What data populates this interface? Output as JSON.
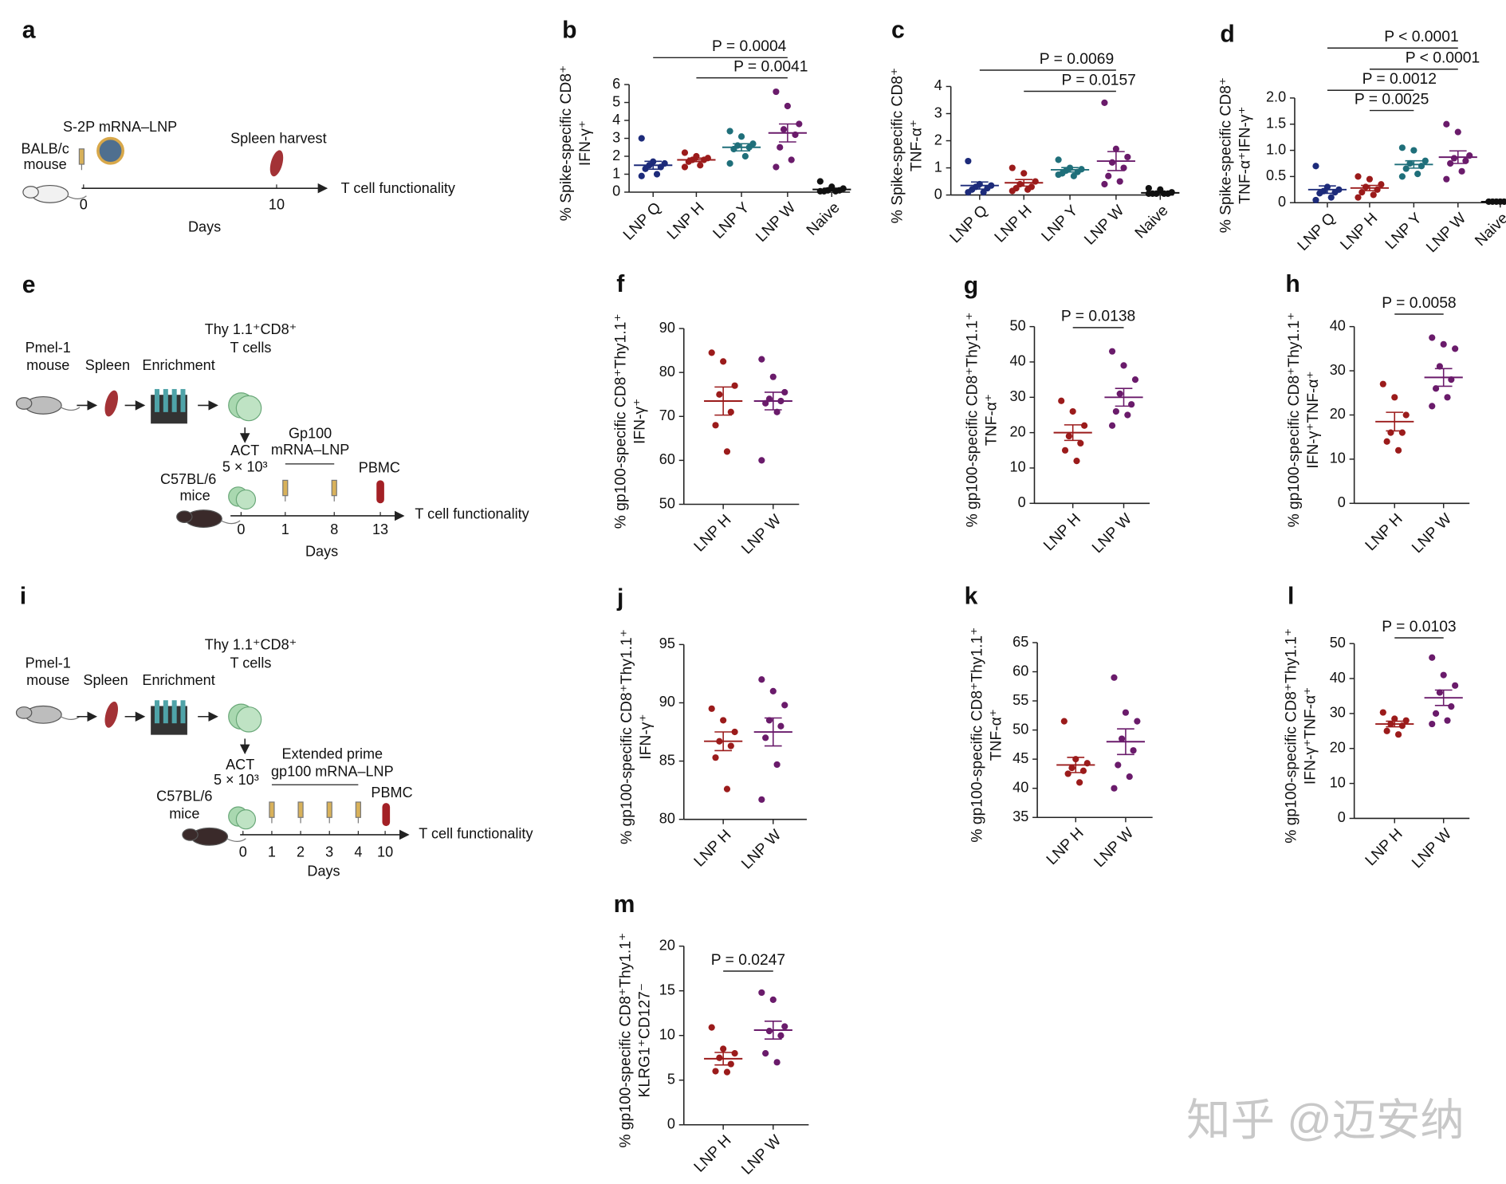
{
  "chart_data": [
    {
      "type": "dot",
      "panel": "b",
      "ylabel": [
        "% Spike-specific CD8⁺",
        "IFN-γ⁺"
      ],
      "categories": [
        "LNP Q",
        "LNP H",
        "LNP Y",
        "LNP W",
        "Naive"
      ],
      "colors": [
        "#1d2b7a",
        "#9b1b1b",
        "#1f6f7a",
        "#6a1b6b",
        "#111111"
      ],
      "points": [
        [
          3.0,
          1.7,
          1.6,
          1.5,
          1.4,
          1.3,
          1.0,
          0.9
        ],
        [
          2.2,
          2.0,
          1.9,
          1.8,
          1.8,
          1.7,
          1.5,
          1.4
        ],
        [
          3.4,
          3.1,
          2.7,
          2.6,
          2.5,
          2.4,
          2.0,
          1.6
        ],
        [
          5.6,
          4.8,
          3.8,
          3.5,
          3.2,
          2.5,
          1.8,
          1.4
        ],
        [
          0.6,
          0.3,
          0.2,
          0.1,
          0.1,
          0.05,
          0.05,
          0.05
        ]
      ],
      "means": [
        1.5,
        1.8,
        2.5,
        3.3,
        0.15
      ],
      "sems": [
        0.22,
        0.1,
        0.2,
        0.5,
        0.07
      ],
      "ylim": [
        0,
        6
      ],
      "yticks": [
        0,
        1,
        2,
        3,
        4,
        5,
        6
      ],
      "comparisons": [
        {
          "label": "P = 0.0004",
          "groups": [
            0,
            3
          ]
        },
        {
          "label": "P = 0.0041",
          "groups": [
            1,
            3
          ]
        }
      ]
    },
    {
      "type": "dot",
      "panel": "c",
      "ylabel": [
        "% Spike-specific CD8⁺",
        "TNF-α⁺"
      ],
      "categories": [
        "LNP Q",
        "LNP H",
        "LNP Y",
        "LNP W",
        "Naive"
      ],
      "colors": [
        "#1d2b7a",
        "#9b1b1b",
        "#1f6f7a",
        "#6a1b6b",
        "#111111"
      ],
      "points": [
        [
          1.25,
          0.4,
          0.35,
          0.3,
          0.25,
          0.2,
          0.1,
          0.1
        ],
        [
          1.0,
          0.8,
          0.5,
          0.4,
          0.3,
          0.25,
          0.2,
          0.15
        ],
        [
          1.3,
          1.0,
          0.95,
          0.9,
          0.85,
          0.8,
          0.7,
          0.75
        ],
        [
          3.4,
          1.7,
          1.4,
          1.2,
          1.0,
          0.7,
          0.5,
          0.4
        ],
        [
          0.25,
          0.2,
          0.1,
          0.05,
          0.05,
          0.05,
          0.05,
          0.05
        ]
      ],
      "means": [
        0.35,
        0.45,
        0.93,
        1.25,
        0.08
      ],
      "sems": [
        0.13,
        0.12,
        0.08,
        0.35,
        0.03
      ],
      "ylim": [
        0,
        4
      ],
      "yticks": [
        0,
        1,
        2,
        3,
        4
      ],
      "comparisons": [
        {
          "label": "P = 0.0069",
          "groups": [
            0,
            3
          ]
        },
        {
          "label": "P = 0.0157",
          "groups": [
            1,
            3
          ]
        }
      ]
    },
    {
      "type": "dot",
      "panel": "d",
      "ylabel": [
        "% Spike-specific CD8⁺",
        "TNF-α⁺IFN-γ⁺"
      ],
      "categories": [
        "LNP Q",
        "LNP H",
        "LNP Y",
        "LNP W",
        "Naive"
      ],
      "colors": [
        "#1d2b7a",
        "#9b1b1b",
        "#1f6f7a",
        "#6a1b6b",
        "#111111"
      ],
      "points": [
        [
          0.7,
          0.3,
          0.25,
          0.22,
          0.2,
          0.18,
          0.1,
          0.05
        ],
        [
          0.5,
          0.45,
          0.35,
          0.3,
          0.25,
          0.2,
          0.15,
          0.1
        ],
        [
          1.05,
          1.0,
          0.8,
          0.75,
          0.7,
          0.65,
          0.55,
          0.5
        ],
        [
          1.5,
          1.35,
          0.9,
          0.85,
          0.8,
          0.75,
          0.6,
          0.45
        ],
        [
          0.02,
          0.02,
          0.02,
          0.02,
          0.02,
          0.02,
          0.02
        ]
      ],
      "means": [
        0.25,
        0.28,
        0.73,
        0.87,
        0.02
      ],
      "sems": [
        0.07,
        0.05,
        0.07,
        0.12,
        0
      ],
      "ylim": [
        0,
        2
      ],
      "yticks": [
        0,
        0.5,
        {
          "value": 1,
          "label": "1.0"
        },
        1.5,
        {
          "value": 2,
          "label": "2.0"
        }
      ],
      "comparisons": [
        {
          "label": "P < 0.0001",
          "groups": [
            0,
            3
          ]
        },
        {
          "label": "P < 0.0001",
          "groups": [
            1,
            3
          ]
        },
        {
          "label": "P = 0.0012",
          "groups": [
            0,
            2
          ]
        },
        {
          "label": "P = 0.0025",
          "groups": [
            1,
            2
          ]
        }
      ]
    },
    {
      "type": "dot",
      "panel": "f",
      "ylabel": [
        "% gp100-specific CD8⁺Thy1.1⁺",
        "IFN-γ⁺"
      ],
      "categories": [
        "LNP H",
        "LNP W"
      ],
      "colors": [
        "#9b1b1b",
        "#6a1b6b"
      ],
      "points": [
        [
          84.5,
          82.5,
          77,
          75,
          71,
          68,
          62
        ],
        [
          83,
          79,
          75.5,
          74,
          73.5,
          73,
          71,
          60
        ]
      ],
      "means": [
        73.5,
        73.5
      ],
      "sems": [
        3.2,
        2
      ],
      "ylim": [
        50,
        90
      ],
      "yticks": [
        50,
        60,
        70,
        80,
        90
      ],
      "comparisons": []
    },
    {
      "type": "dot",
      "panel": "g",
      "ylabel": [
        "% gp100-specific CD8⁺Thy1.1⁺",
        "TNF-α⁺"
      ],
      "categories": [
        "LNP H",
        "LNP W"
      ],
      "colors": [
        "#9b1b1b",
        "#6a1b6b"
      ],
      "points": [
        [
          29,
          26,
          22,
          19,
          17,
          15,
          12
        ],
        [
          43,
          39,
          35,
          31,
          28,
          26,
          25,
          22
        ]
      ],
      "means": [
        20,
        30
      ],
      "sems": [
        2.2,
        2.5
      ],
      "ylim": [
        0,
        50
      ],
      "yticks": [
        0,
        10,
        20,
        30,
        40,
        50
      ],
      "comparisons": [
        {
          "label": "P = 0.0138",
          "groups": [
            0,
            1
          ]
        }
      ]
    },
    {
      "type": "dot",
      "panel": "h",
      "ylabel": [
        "% gp100-specific CD8⁺Thy1.1⁺",
        "IFN-γ⁺TNF-α⁺"
      ],
      "categories": [
        "LNP H",
        "LNP W"
      ],
      "colors": [
        "#9b1b1b",
        "#6a1b6b"
      ],
      "points": [
        [
          27,
          24,
          20,
          16,
          16,
          14,
          12
        ],
        [
          37.5,
          36,
          35,
          31,
          28,
          26,
          24,
          22
        ]
      ],
      "means": [
        18.5,
        28.5
      ],
      "sems": [
        2.1,
        2
      ],
      "ylim": [
        0,
        40
      ],
      "yticks": [
        0,
        10,
        20,
        30,
        40
      ],
      "comparisons": [
        {
          "label": "P = 0.0058",
          "groups": [
            0,
            1
          ]
        }
      ]
    },
    {
      "type": "dot",
      "panel": "j",
      "ylabel": [
        "% gp100-specific CD8⁺Thy1.1⁺",
        "IFN-γ⁺"
      ],
      "categories": [
        "LNP H",
        "LNP W"
      ],
      "colors": [
        "#9b1b1b",
        "#6a1b6b"
      ],
      "points": [
        [
          89.5,
          88.5,
          87.5,
          86.7,
          86.3,
          85.3,
          82.6
        ],
        [
          92,
          91,
          89.8,
          88.5,
          88,
          87,
          84.7,
          81.7
        ]
      ],
      "means": [
        86.7,
        87.5
      ],
      "sems": [
        0.8,
        1.2
      ],
      "ylim": [
        80,
        95
      ],
      "yticks": [
        80,
        85,
        90,
        95
      ],
      "comparisons": []
    },
    {
      "type": "dot",
      "panel": "k",
      "ylabel": [
        "% gp100-specific CD8⁺Thy1.1⁺",
        "TNF-α⁺"
      ],
      "categories": [
        "LNP H",
        "LNP W"
      ],
      "colors": [
        "#9b1b1b",
        "#6a1b6b"
      ],
      "points": [
        [
          51.5,
          45,
          44.3,
          43.5,
          43,
          42.5,
          41
        ],
        [
          59,
          53,
          51.5,
          48.5,
          46.5,
          44,
          42,
          40
        ]
      ],
      "means": [
        44,
        48
      ],
      "sems": [
        1.3,
        2.2
      ],
      "ylim": [
        35,
        65
      ],
      "yticks": [
        35,
        40,
        45,
        50,
        55,
        60,
        65
      ],
      "comparisons": []
    },
    {
      "type": "dot",
      "panel": "l",
      "ylabel": [
        "% gp100-specific CD8⁺Thy1.1⁺",
        "IFN-γ⁺TNF-α⁺"
      ],
      "categories": [
        "LNP H",
        "LNP W"
      ],
      "colors": [
        "#9b1b1b",
        "#6a1b6b"
      ],
      "points": [
        [
          30.3,
          28.5,
          28,
          27,
          26.5,
          25,
          24
        ],
        [
          46,
          41,
          38,
          36,
          32,
          30,
          28,
          27
        ]
      ],
      "means": [
        27,
        34.5
      ],
      "sems": [
        0.8,
        2.2
      ],
      "ylim": [
        0,
        50
      ],
      "yticks": [
        0,
        10,
        20,
        30,
        40,
        50
      ],
      "comparisons": [
        {
          "label": "P = 0.0103",
          "groups": [
            0,
            1
          ]
        }
      ]
    },
    {
      "type": "dot",
      "panel": "m",
      "ylabel": [
        "% gp100-specific CD8⁺Thy1.1⁺",
        "KLRG1⁺CD127⁻"
      ],
      "categories": [
        "LNP H",
        "LNP W"
      ],
      "colors": [
        "#9b1b1b",
        "#6a1b6b"
      ],
      "points": [
        [
          10.9,
          8.5,
          8,
          7.5,
          6.8,
          6,
          5.9
        ],
        [
          14.8,
          14,
          11,
          10.5,
          10,
          8,
          7
        ]
      ],
      "means": [
        7.4,
        10.6
      ],
      "sems": [
        0.7,
        1
      ],
      "ylim": [
        0,
        20
      ],
      "yticks": [
        0,
        5,
        10,
        15,
        20
      ],
      "comparisons": [
        {
          "label": "P = 0.0247",
          "groups": [
            0,
            1
          ]
        }
      ]
    }
  ],
  "schematics": [
    {
      "panel": "a",
      "texts": [
        "S-2P mRNA–LNP",
        "BALB/c",
        "mouse",
        "Spleen harvest",
        "T cell functionality",
        "0",
        "10",
        "Days"
      ]
    },
    {
      "panel": "e",
      "texts": [
        "Thy 1.1⁺CD8⁺",
        "T cells",
        "Pmel-1",
        "mouse",
        "Spleen",
        "Enrichment",
        "ACT",
        "5 × 10³",
        "C57BL/6",
        "mice",
        "Gp100",
        "mRNA–LNP",
        "PBMC",
        "T cell functionality",
        "0",
        "1",
        "8",
        "13",
        "Days"
      ]
    },
    {
      "panel": "i",
      "texts": [
        "Thy 1.1⁺CD8⁺",
        "T cells",
        "Pmel-1",
        "mouse",
        "Spleen",
        "Enrichment",
        "ACT",
        "5 × 10³",
        "C57BL/6",
        "mice",
        "Extended prime",
        "gp100 mRNA–LNP",
        "PBMC",
        "T cell functionality",
        "0",
        "1",
        "2",
        "3",
        "4",
        "10",
        "Days"
      ]
    }
  ],
  "watermark": "知乎 @迈安纳"
}
